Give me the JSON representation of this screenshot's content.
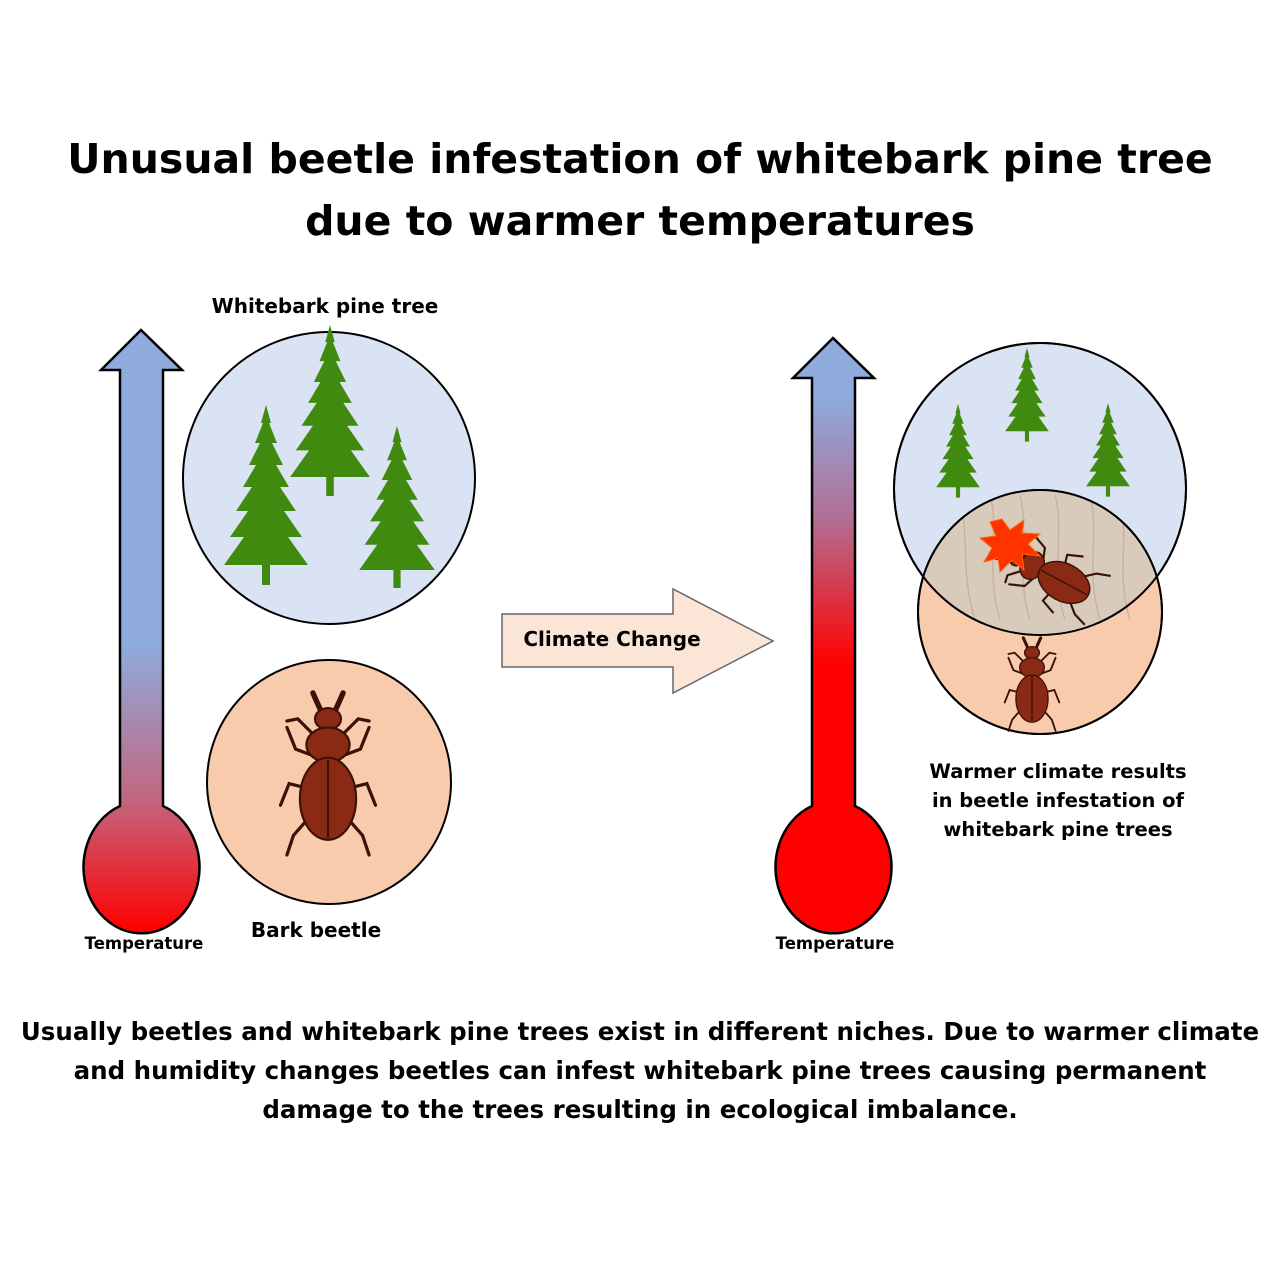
{
  "title": {
    "line1": "Unusual beetle infestation of whitebark pine tree",
    "line2": "due to warmer temperatures"
  },
  "left_panel": {
    "tree_label": "Whitebark pine tree",
    "beetle_label": "Bark beetle",
    "thermometer_label": "Temperature"
  },
  "arrow": {
    "label": "Climate Change"
  },
  "right_panel": {
    "result_line1": "Warmer climate results",
    "result_line2": "in beetle infestation of",
    "result_line3": "whitebark pine trees",
    "thermometer_label": "Temperature"
  },
  "summary": {
    "line1": "Usually beetles and whitebark pine trees exist in different niches. Due to warmer climate",
    "line2": "and humidity changes beetles can infest whitebark pine trees causing permanent",
    "line3": "damage to the trees resulting in ecological imbalance."
  },
  "colors": {
    "tree_niche": "#dae3f3",
    "beetle_niche": "#f8cbad",
    "thermo_cool": "#8faadc",
    "thermo_warm": "#ff0000",
    "tree_green": "#3f8a0f",
    "beetle_brown": "#8b2a14",
    "arrow_fill": "#fbe5d6",
    "burst": "#ff3300"
  }
}
